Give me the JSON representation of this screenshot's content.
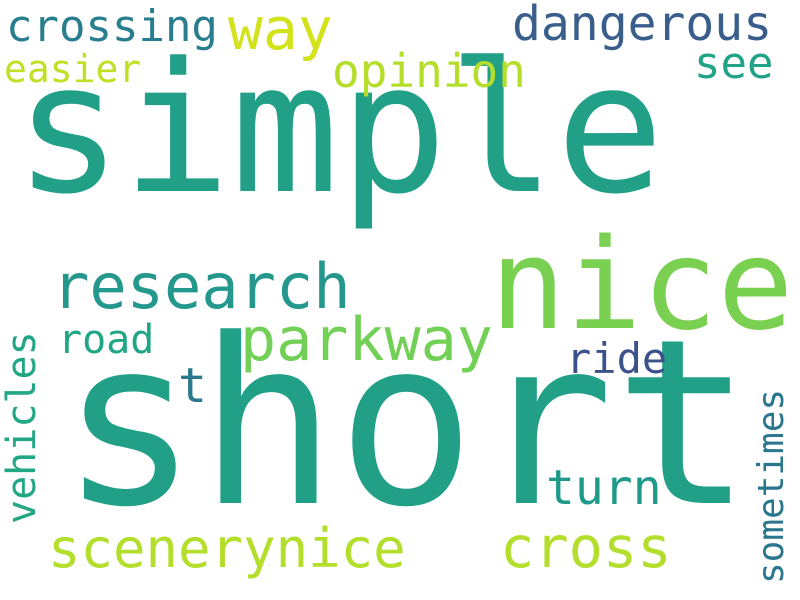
{
  "words": [
    {
      "text": "simple",
      "color": "#21a087"
    },
    {
      "text": "short",
      "color": "#21a087"
    },
    {
      "text": "nice",
      "color": "#7ad151"
    },
    {
      "text": "research",
      "color": "#25988d"
    },
    {
      "text": "parkway",
      "color": "#73d056"
    },
    {
      "text": "scenerynice",
      "color": "#b4de2c"
    },
    {
      "text": "cross",
      "color": "#b4de2c"
    },
    {
      "text": "way",
      "color": "#d2e21b"
    },
    {
      "text": "dangerous",
      "color": "#3a5e8c"
    },
    {
      "text": "crossing",
      "color": "#287d8e"
    },
    {
      "text": "easier",
      "color": "#c0df25"
    },
    {
      "text": "opinion",
      "color": "#b5de2b"
    },
    {
      "text": "see",
      "color": "#20a386"
    },
    {
      "text": "road",
      "color": "#21a685"
    },
    {
      "text": "t",
      "color": "#2a788e"
    },
    {
      "text": "ride",
      "color": "#3b518b"
    },
    {
      "text": "turn",
      "color": "#1f9a8a"
    },
    {
      "text": "vehicles",
      "color": "#22a785"
    },
    {
      "text": "sometimes",
      "color": "#2a768e"
    }
  ]
}
